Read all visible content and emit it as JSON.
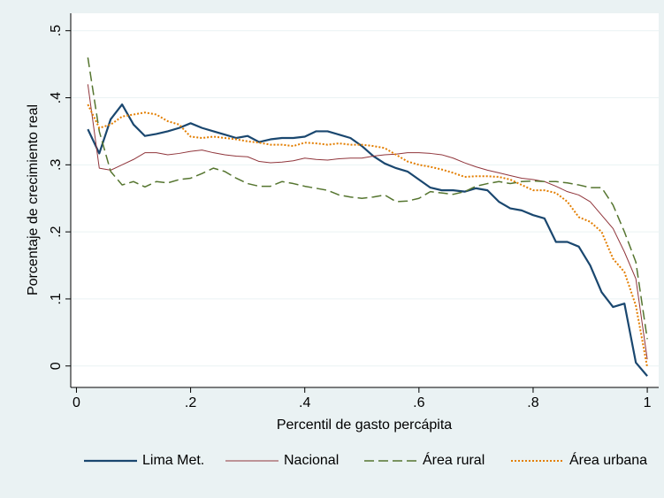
{
  "chart_data": {
    "type": "line",
    "xlabel": "Percentil de gasto percápita",
    "ylabel": "Porcentaje de crecimiento real",
    "x": [
      0.02,
      0.04,
      0.06,
      0.08,
      0.1,
      0.12,
      0.14,
      0.16,
      0.18,
      0.2,
      0.22,
      0.24,
      0.26,
      0.28,
      0.3,
      0.32,
      0.34,
      0.36,
      0.38,
      0.4,
      0.42,
      0.44,
      0.46,
      0.48,
      0.5,
      0.52,
      0.54,
      0.56,
      0.58,
      0.6,
      0.62,
      0.64,
      0.66,
      0.68,
      0.7,
      0.72,
      0.74,
      0.76,
      0.78,
      0.8,
      0.82,
      0.84,
      0.86,
      0.88,
      0.9,
      0.92,
      0.94,
      0.96,
      0.98,
      1.0
    ],
    "series": [
      {
        "name": "Lima Met.",
        "color": "#1a476f",
        "style": "solid",
        "values": [
          0.353,
          0.317,
          0.368,
          0.39,
          0.36,
          0.343,
          0.346,
          0.35,
          0.355,
          0.362,
          0.355,
          0.35,
          0.345,
          0.34,
          0.343,
          0.334,
          0.338,
          0.34,
          0.34,
          0.342,
          0.35,
          0.35,
          0.345,
          0.34,
          0.328,
          0.313,
          0.302,
          0.295,
          0.29,
          0.278,
          0.266,
          0.262,
          0.262,
          0.26,
          0.265,
          0.262,
          0.245,
          0.235,
          0.232,
          0.225,
          0.22,
          0.185,
          0.185,
          0.178,
          0.15,
          0.11,
          0.088,
          0.093,
          0.005,
          -0.015
        ]
      },
      {
        "name": "Nacional",
        "color": "#90353b",
        "style": "thin",
        "values": [
          0.42,
          0.295,
          0.292,
          0.3,
          0.308,
          0.318,
          0.318,
          0.315,
          0.317,
          0.32,
          0.322,
          0.318,
          0.315,
          0.313,
          0.312,
          0.305,
          0.303,
          0.304,
          0.306,
          0.31,
          0.308,
          0.307,
          0.309,
          0.31,
          0.31,
          0.313,
          0.315,
          0.316,
          0.318,
          0.318,
          0.317,
          0.315,
          0.31,
          0.303,
          0.297,
          0.292,
          0.288,
          0.284,
          0.28,
          0.278,
          0.275,
          0.268,
          0.26,
          0.255,
          0.245,
          0.225,
          0.205,
          0.17,
          0.13,
          0.01
        ]
      },
      {
        "name": "Área rural",
        "color": "#55752f",
        "style": "dashed",
        "values": [
          0.46,
          0.35,
          0.29,
          0.27,
          0.275,
          0.267,
          0.275,
          0.273,
          0.278,
          0.28,
          0.287,
          0.295,
          0.29,
          0.28,
          0.272,
          0.268,
          0.268,
          0.275,
          0.272,
          0.268,
          0.265,
          0.262,
          0.255,
          0.252,
          0.25,
          0.252,
          0.255,
          0.245,
          0.246,
          0.25,
          0.26,
          0.258,
          0.256,
          0.26,
          0.268,
          0.272,
          0.275,
          0.272,
          0.275,
          0.276,
          0.275,
          0.275,
          0.273,
          0.27,
          0.266,
          0.266,
          0.24,
          0.2,
          0.155,
          0.04
        ]
      },
      {
        "name": "Área urbana",
        "color": "#e37e00",
        "style": "dotted",
        "values": [
          0.39,
          0.355,
          0.36,
          0.372,
          0.375,
          0.378,
          0.375,
          0.365,
          0.36,
          0.342,
          0.34,
          0.342,
          0.34,
          0.338,
          0.335,
          0.333,
          0.33,
          0.33,
          0.328,
          0.333,
          0.332,
          0.33,
          0.332,
          0.33,
          0.33,
          0.328,
          0.325,
          0.315,
          0.305,
          0.3,
          0.297,
          0.293,
          0.288,
          0.282,
          0.283,
          0.283,
          0.282,
          0.278,
          0.27,
          0.262,
          0.262,
          0.258,
          0.245,
          0.222,
          0.215,
          0.2,
          0.16,
          0.14,
          0.09,
          -0.002
        ]
      }
    ],
    "xlim": [
      -0.01,
      1.02
    ],
    "ylim": [
      -0.032,
      0.526
    ],
    "xticks": [
      0,
      {
        "value": 0.2,
        "label": ".2"
      },
      {
        "value": 0.4,
        "label": ".4"
      },
      {
        "value": 0.6,
        "label": ".6"
      },
      {
        "value": 0.8,
        "label": ".8"
      },
      1
    ],
    "yticks": [
      0,
      {
        "value": 0.1,
        "label": ".1"
      },
      {
        "value": 0.2,
        "label": ".2"
      },
      {
        "value": 0.3,
        "label": ".3"
      },
      {
        "value": 0.4,
        "label": ".4"
      },
      {
        "value": 0.5,
        "label": ".5"
      }
    ],
    "grid": true,
    "legend": "bottom"
  }
}
